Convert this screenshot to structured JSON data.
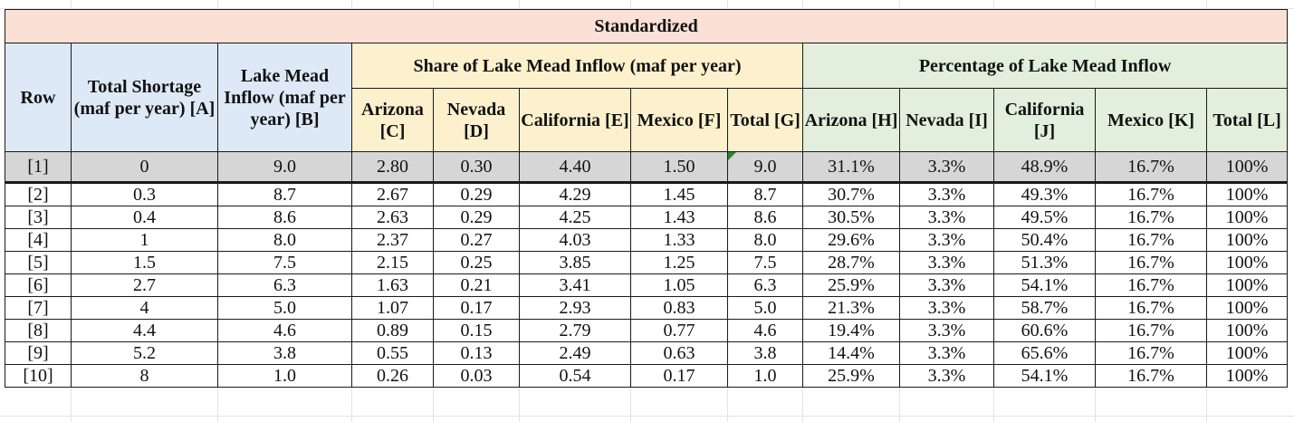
{
  "title": "Standardized",
  "headers": {
    "row": "Row",
    "total_shortage": "Total Shortage (maf per year) [A]",
    "inflow": "Lake Mead Inflow (maf per year) [B]",
    "share_group": "Share of Lake Mead Inflow (maf per year)",
    "pct_group": "Percentage of Lake Mead Inflow",
    "share_cols": [
      "Arizona [C]",
      "Nevada [D]",
      "California [E]",
      "Mexico [F]",
      "Total [G]"
    ],
    "pct_cols": [
      "Arizona [H]",
      "Nevada [I]",
      "California [J]",
      "Mexico [K]",
      "Total [L]"
    ]
  },
  "rows": [
    [
      "[1]",
      "0",
      "9.0",
      "2.80",
      "0.30",
      "4.40",
      "1.50",
      "9.0",
      "31.1%",
      "3.3%",
      "48.9%",
      "16.7%",
      "100%"
    ],
    [
      "[2]",
      "0.3",
      "8.7",
      "2.67",
      "0.29",
      "4.29",
      "1.45",
      "8.7",
      "30.7%",
      "3.3%",
      "49.3%",
      "16.7%",
      "100%"
    ],
    [
      "[3]",
      "0.4",
      "8.6",
      "2.63",
      "0.29",
      "4.25",
      "1.43",
      "8.6",
      "30.5%",
      "3.3%",
      "49.5%",
      "16.7%",
      "100%"
    ],
    [
      "[4]",
      "1",
      "8.0",
      "2.37",
      "0.27",
      "4.03",
      "1.33",
      "8.0",
      "29.6%",
      "3.3%",
      "50.4%",
      "16.7%",
      "100%"
    ],
    [
      "[5]",
      "1.5",
      "7.5",
      "2.15",
      "0.25",
      "3.85",
      "1.25",
      "7.5",
      "28.7%",
      "3.3%",
      "51.3%",
      "16.7%",
      "100%"
    ],
    [
      "[6]",
      "2.7",
      "6.3",
      "1.63",
      "0.21",
      "3.41",
      "1.05",
      "6.3",
      "25.9%",
      "3.3%",
      "54.1%",
      "16.7%",
      "100%"
    ],
    [
      "[7]",
      "4",
      "5.0",
      "1.07",
      "0.17",
      "2.93",
      "0.83",
      "5.0",
      "21.3%",
      "3.3%",
      "58.7%",
      "16.7%",
      "100%"
    ],
    [
      "[8]",
      "4.4",
      "4.6",
      "0.89",
      "0.15",
      "2.79",
      "0.77",
      "4.6",
      "19.4%",
      "3.3%",
      "60.6%",
      "16.7%",
      "100%"
    ],
    [
      "[9]",
      "5.2",
      "3.8",
      "0.55",
      "0.13",
      "2.49",
      "0.63",
      "3.8",
      "14.4%",
      "3.3%",
      "65.6%",
      "16.7%",
      "100%"
    ],
    [
      "[10]",
      "8",
      "1.0",
      "0.26",
      "0.03",
      "0.54",
      "0.17",
      "1.0",
      "25.9%",
      "3.3%",
      "54.1%",
      "16.7%",
      "100%"
    ]
  ],
  "colors": {
    "title_bg": "#fbe0d6",
    "blue_bg": "#dde9f6",
    "yellow_bg": "#fdf1cd",
    "green_bg": "#e1efdc",
    "first_row_bg": "#d6d6d6",
    "comment_marker": "#1f8a2e"
  }
}
